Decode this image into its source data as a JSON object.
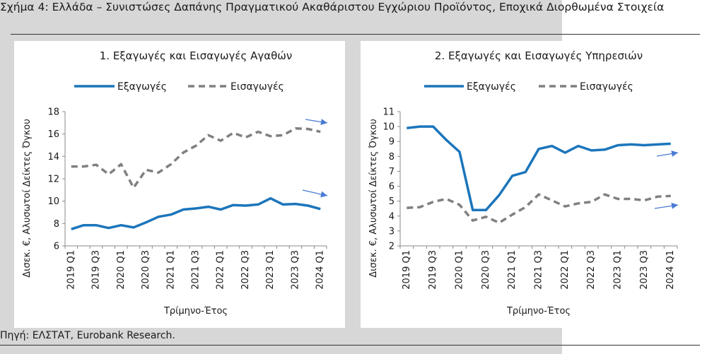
{
  "figure_title": "Σχήμα 4: Ελλάδα – Συνιστώσες Δαπάνης Πραγματικού Ακαθάριστου Εγχώριου Προϊόντος, Εποχικά Διορθωμένα Στοιχεία",
  "source": "Πηγή: ΕΛΣΤΑΤ, Eurobank Research.",
  "colors": {
    "exports": "#1b75bb",
    "imports": "#808080",
    "arrow": "#4a7bd4",
    "background_left": "#d7d7d7"
  },
  "chart_data": [
    {
      "type": "line",
      "title": "1. Εξαγωγές και Εισαγωγές Αγαθών",
      "xlabel": "Τρίμηνο-Έτος",
      "ylabel": "Δισεκ. €, Αλυσωτοί Δείκτες Όγκου",
      "ylim": [
        6,
        18
      ],
      "yticks": [
        6,
        8,
        10,
        12,
        14,
        16,
        18
      ],
      "x_tick_labels": [
        "2019 Q1",
        "2019 Q3",
        "2020 Q1",
        "2020 Q3",
        "2021 Q1",
        "2021 Q3",
        "2022 Q1",
        "2022 Q3",
        "2023 Q1",
        "2023 Q3",
        "2024 Q1"
      ],
      "categories": [
        "2019 Q1",
        "2019 Q2",
        "2019 Q3",
        "2019 Q4",
        "2020 Q1",
        "2020 Q2",
        "2020 Q3",
        "2020 Q4",
        "2021 Q1",
        "2021 Q2",
        "2021 Q3",
        "2021 Q4",
        "2022 Q1",
        "2022 Q2",
        "2022 Q3",
        "2022 Q4",
        "2023 Q1",
        "2023 Q2",
        "2023 Q3",
        "2023 Q4",
        "2024 Q1"
      ],
      "legend_position": "top",
      "series": [
        {
          "name": "Εξαγωγές",
          "style": "solid",
          "values": [
            7.5,
            7.85,
            7.85,
            7.6,
            7.85,
            7.65,
            8.1,
            8.6,
            8.8,
            9.25,
            9.35,
            9.5,
            9.25,
            9.65,
            9.6,
            9.7,
            10.25,
            9.7,
            9.75,
            9.6,
            9.3
          ]
        },
        {
          "name": "Εισαγωγές",
          "style": "dashed",
          "values": [
            13.1,
            13.1,
            13.25,
            12.4,
            13.3,
            11.2,
            12.8,
            12.55,
            13.3,
            14.35,
            14.95,
            15.9,
            15.4,
            16.1,
            15.7,
            16.2,
            15.8,
            15.9,
            16.5,
            16.45,
            16.2
          ]
        }
      ],
      "annotations": [
        {
          "type": "arrow",
          "series": "Εισαγωγές",
          "direction": "up"
        },
        {
          "type": "arrow",
          "series": "Εξαγωγές",
          "direction": "up"
        }
      ]
    },
    {
      "type": "line",
      "title": "2. Εξαγωγές και Εισαγωγές Υπηρεσιών",
      "xlabel": "Τρίμηνο-Έτος",
      "ylabel": "Δισεκ. €, Αλυσωτοί Δείκτες Όγκου",
      "ylim": [
        2,
        11
      ],
      "yticks": [
        2,
        3,
        4,
        5,
        6,
        7,
        8,
        9,
        10,
        11
      ],
      "x_tick_labels": [
        "2019 Q1",
        "2019 Q3",
        "2020 Q1",
        "2020 Q3",
        "2021 Q1",
        "2021 Q3",
        "2022 Q1",
        "2022 Q3",
        "2023 Q1",
        "2023 Q3",
        "2024 Q1"
      ],
      "categories": [
        "2019 Q1",
        "2019 Q2",
        "2019 Q3",
        "2019 Q4",
        "2020 Q1",
        "2020 Q2",
        "2020 Q3",
        "2020 Q4",
        "2021 Q1",
        "2021 Q2",
        "2021 Q3",
        "2021 Q4",
        "2022 Q1",
        "2022 Q2",
        "2022 Q3",
        "2022 Q4",
        "2023 Q1",
        "2023 Q2",
        "2023 Q3",
        "2023 Q4",
        "2024 Q1"
      ],
      "legend_position": "top",
      "series": [
        {
          "name": "Εξαγωγές",
          "style": "solid",
          "values": [
            9.9,
            10.0,
            10.0,
            9.1,
            8.3,
            4.4,
            4.4,
            5.4,
            6.7,
            6.95,
            8.5,
            8.7,
            8.25,
            8.7,
            8.4,
            8.45,
            8.75,
            8.8,
            8.75,
            8.8,
            8.85
          ]
        },
        {
          "name": "Εισαγωγές",
          "style": "dashed",
          "values": [
            4.55,
            4.6,
            4.95,
            5.15,
            4.75,
            3.7,
            3.95,
            3.55,
            4.1,
            4.6,
            5.45,
            5.05,
            4.65,
            4.85,
            4.95,
            5.45,
            5.15,
            5.15,
            5.05,
            5.3,
            5.35
          ]
        }
      ],
      "annotations": [
        {
          "type": "arrow",
          "series": "Εξαγωγές",
          "direction": "up"
        },
        {
          "type": "arrow",
          "series": "Εισαγωγές",
          "direction": "up"
        }
      ]
    }
  ]
}
